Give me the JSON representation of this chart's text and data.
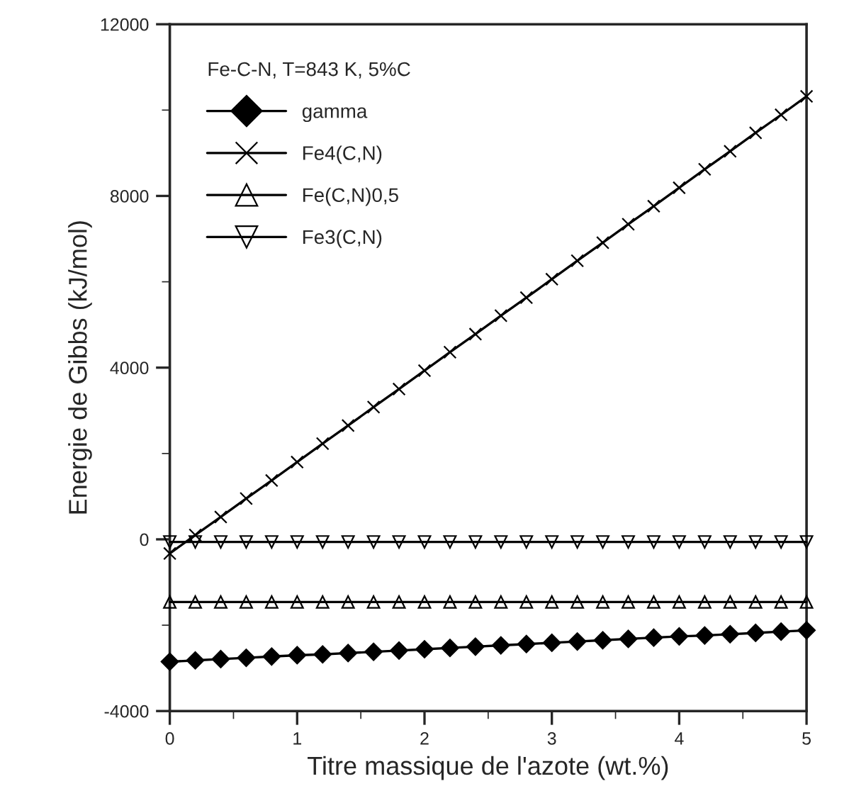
{
  "chart_data": {
    "type": "line",
    "xlabel": "Titre massique de l'azote (wt.%)",
    "ylabel": "Energie de Gibbs (kJ/mol)",
    "legend_title": "Fe-C-N, T=843 K, 5%C",
    "legend": "top left",
    "grid": false,
    "x": [
      0,
      0.2,
      0.4,
      0.6,
      0.8,
      1,
      1.2,
      1.4,
      1.6,
      1.8,
      2,
      2.2,
      2.4,
      2.6,
      2.8,
      3,
      3.2,
      3.4,
      3.6,
      3.8,
      4,
      4.2,
      4.4,
      4.6,
      4.8,
      5
    ],
    "xlim": [
      0,
      5
    ],
    "xticks": [
      0,
      1,
      2,
      3,
      4,
      5
    ],
    "ylim": [
      -4000,
      12000
    ],
    "yticks": [
      -4000,
      0,
      4000,
      8000,
      12000
    ],
    "series": [
      {
        "name": "gamma",
        "color": "#000000",
        "marker": "diamond",
        "values": [
          -2850,
          -2820,
          -2790,
          -2760,
          -2730,
          -2700,
          -2680,
          -2650,
          -2620,
          -2590,
          -2560,
          -2530,
          -2500,
          -2470,
          -2440,
          -2410,
          -2380,
          -2350,
          -2320,
          -2290,
          -2260,
          -2240,
          -2210,
          -2180,
          -2150,
          -2120
        ]
      },
      {
        "name": "Fe4(C,N)",
        "color": "#000000",
        "marker": "cross",
        "values": [
          -330,
          100,
          520,
          950,
          1370,
          1800,
          2230,
          2650,
          3080,
          3500,
          3930,
          4360,
          4780,
          5210,
          5630,
          6060,
          6490,
          6910,
          7340,
          7760,
          8190,
          8620,
          9040,
          9470,
          9890,
          10320
        ]
      },
      {
        "name": "Fe(C,N)0,5",
        "color": "#000000",
        "marker": "triangle",
        "values": [
          -1460,
          -1460,
          -1460,
          -1460,
          -1460,
          -1460,
          -1460,
          -1460,
          -1460,
          -1460,
          -1460,
          -1460,
          -1460,
          -1460,
          -1460,
          -1460,
          -1460,
          -1460,
          -1460,
          -1460,
          -1460,
          -1460,
          -1460,
          -1460,
          -1460,
          -1460
        ]
      },
      {
        "name": "Fe3(C,N)",
        "color": "#000000",
        "marker": "triangle_down",
        "values": [
          -60,
          -60,
          -60,
          -60,
          -60,
          -60,
          -60,
          -60,
          -60,
          -60,
          -60,
          -60,
          -60,
          -60,
          -60,
          -60,
          -60,
          -60,
          -60,
          -60,
          -60,
          -60,
          -60,
          -60,
          -60,
          -60
        ]
      }
    ]
  }
}
